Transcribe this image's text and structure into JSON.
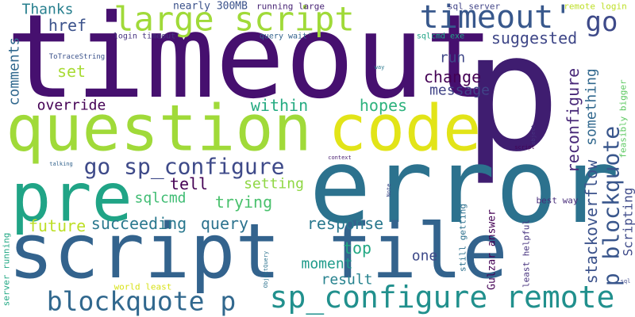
{
  "words": [
    {
      "text": "timeout",
      "color": "#46106f"
    },
    {
      "text": "p",
      "color": "#3f1d70"
    },
    {
      "text": "question",
      "color": "#a0da39"
    },
    {
      "text": "code",
      "color": "#e2e418"
    },
    {
      "text": "error",
      "color": "#2c728e"
    },
    {
      "text": "pre",
      "color": "#20a486"
    },
    {
      "text": "script file",
      "color": "#33638d"
    },
    {
      "text": "large script",
      "color": "#a0da39"
    },
    {
      "text": "timeout'",
      "color": "#38588c"
    },
    {
      "text": "go",
      "color": "#3e4a89"
    },
    {
      "text": "sp_configure remote",
      "color": "#21908d"
    },
    {
      "text": "blockquote p",
      "color": "#31688e"
    },
    {
      "text": "go sp_configure",
      "color": "#3e4a89"
    },
    {
      "text": "p blockquote",
      "color": "#39568c"
    },
    {
      "text": "stackoverflow",
      "color": "#3b528b"
    },
    {
      "text": "something",
      "color": "#31688e"
    },
    {
      "text": "reconfigure",
      "color": "#482878"
    },
    {
      "text": "Scripting",
      "color": "#3e4a89"
    },
    {
      "text": "suggested",
      "color": "#3f4788"
    },
    {
      "text": "Thanks",
      "color": "#277f8e"
    },
    {
      "text": "comments",
      "color": "#31688e"
    },
    {
      "text": "href",
      "color": "#3b528b"
    },
    {
      "text": "set",
      "color": "#a8db34"
    },
    {
      "text": "override",
      "color": "#440154"
    },
    {
      "text": "change",
      "color": "#440154"
    },
    {
      "text": "run",
      "color": "#3f4788"
    },
    {
      "text": "message",
      "color": "#414487"
    },
    {
      "text": "hopes",
      "color": "#2db27d"
    },
    {
      "text": "within",
      "color": "#25ab82"
    },
    {
      "text": "tell",
      "color": "#440154"
    },
    {
      "text": "setting",
      "color": "#8fd744"
    },
    {
      "text": "trying",
      "color": "#4ac16d"
    },
    {
      "text": "sqlcmd",
      "color": "#3fbc73"
    },
    {
      "text": "future",
      "color": "#bddf26"
    },
    {
      "text": "succeeding",
      "color": "#2a788e"
    },
    {
      "text": "query",
      "color": "#2c728e"
    },
    {
      "text": "response",
      "color": "#2a788e"
    },
    {
      "text": "top",
      "color": "#22a884"
    },
    {
      "text": "one",
      "color": "#3e4a89"
    },
    {
      "text": "moment",
      "color": "#1e9b8a"
    },
    {
      "text": "result",
      "color": "#26828e"
    },
    {
      "text": "Gulzar answer",
      "color": "#440154"
    },
    {
      "text": "still getting",
      "color": "#2d708e"
    },
    {
      "text": "least helpful",
      "color": "#46327e"
    },
    {
      "text": "best way",
      "color": "#472c7a"
    },
    {
      "text": "feasibly bigger",
      "color": "#5ec962"
    },
    {
      "text": "remote login",
      "color": "#bddf26"
    },
    {
      "text": "sql server",
      "color": "#414487"
    },
    {
      "text": "nearly 300MB",
      "color": "#3b528b"
    },
    {
      "text": "running large",
      "color": "#482475"
    },
    {
      "text": "login timeout'",
      "color": "#46337f"
    },
    {
      "text": "query wait'",
      "color": "#33638d"
    },
    {
      "text": "sqlcmd exe",
      "color": "#20a486"
    },
    {
      "text": "ToTraceString",
      "color": "#3b528b"
    },
    {
      "text": "way",
      "color": "#2a788e"
    },
    {
      "text": "object",
      "color": "#46337f"
    },
    {
      "text": "script",
      "color": "#440154"
    },
    {
      "text": "talking",
      "color": "#33638d"
    },
    {
      "text": "context",
      "color": "#481f70"
    },
    {
      "text": "Note",
      "color": "#3e4a89"
    },
    {
      "text": "server running",
      "color": "#22a884"
    },
    {
      "text": "ObjectQuery",
      "color": "#2c728e"
    },
    {
      "text": "world least",
      "color": "#d8e219"
    },
    {
      "text": "sql",
      "color": "#3e4a89"
    }
  ]
}
